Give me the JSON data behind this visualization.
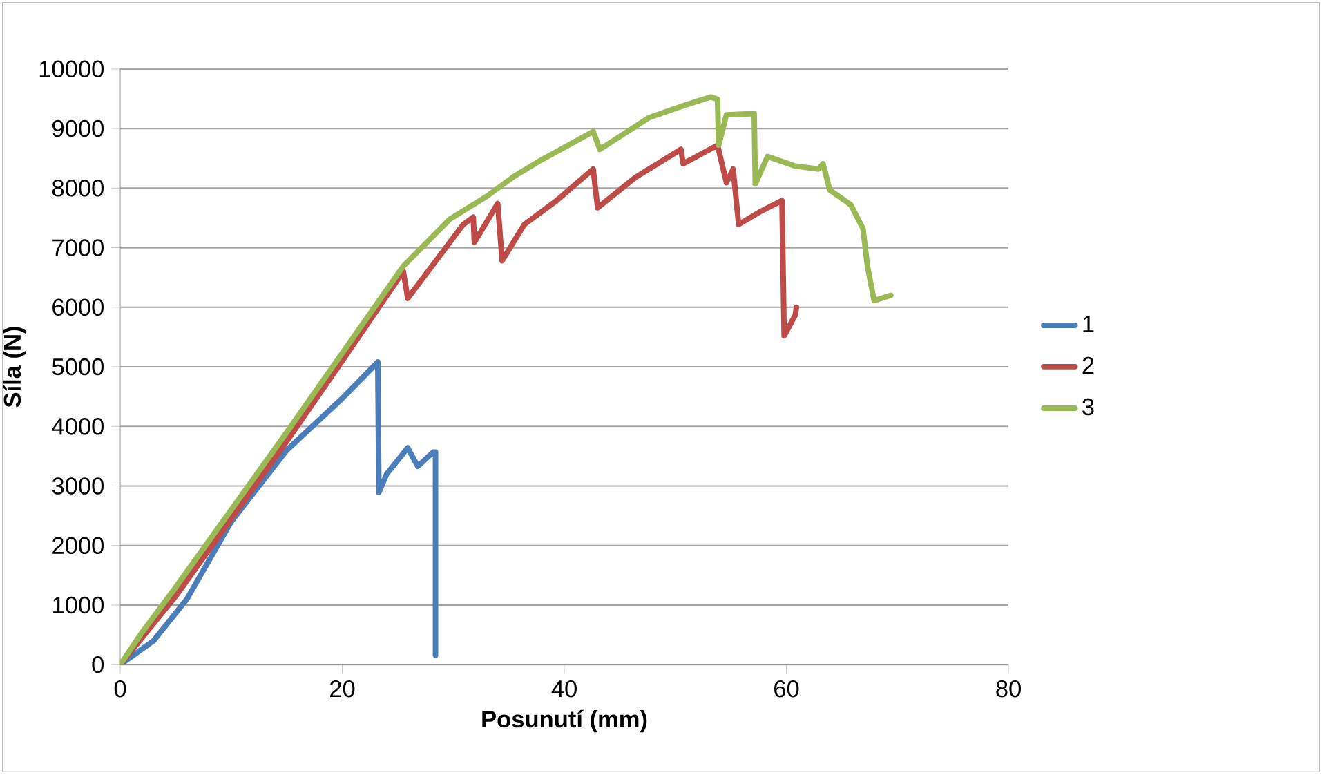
{
  "chart_data": {
    "type": "line",
    "xlabel": "Posunutí (mm)",
    "ylabel": "Síla (N)",
    "xlim": [
      0,
      80
    ],
    "xticks": [
      0,
      20,
      40,
      60,
      80
    ],
    "ylim": [
      0,
      10000
    ],
    "yticks": [
      0,
      1000,
      2000,
      3000,
      4000,
      5000,
      6000,
      7000,
      8000,
      9000,
      10000
    ],
    "grid": "y",
    "legend": "right",
    "marker": "none",
    "line_style": "solid",
    "series": [
      {
        "name": "1",
        "color": "#4a7ebb",
        "x": [
          0,
          3,
          6,
          10,
          15,
          20,
          23.2,
          23.3,
          24,
          25.9,
          26.8,
          28.2,
          28.4,
          28.4
        ],
        "values": [
          0,
          400,
          1100,
          2400,
          3600,
          4470,
          5080,
          2890,
          3200,
          3640,
          3330,
          3570,
          3570,
          160
        ]
      },
      {
        "name": "2",
        "color": "#be4b48",
        "x": [
          0,
          5,
          10,
          15,
          20,
          25.5,
          25.9,
          30.9,
          31.8,
          31.9,
          34.0,
          34.4,
          36.4,
          39.3,
          42.6,
          43.0,
          46.4,
          50.5,
          50.7,
          53.8,
          54.6,
          55.2,
          55.7,
          57.6,
          59.6,
          59.8,
          60.8,
          60.9
        ],
        "values": [
          0,
          1150,
          2450,
          3750,
          5100,
          6600,
          6150,
          7390,
          7510,
          7090,
          7740,
          6780,
          7390,
          7790,
          8320,
          7670,
          8180,
          8650,
          8410,
          8720,
          8090,
          8320,
          7390,
          7600,
          7790,
          5520,
          5870,
          6000
        ]
      },
      {
        "name": "3",
        "color": "#98b954",
        "x": [
          0,
          2,
          5,
          10,
          15,
          20,
          25.5,
          29.7,
          33.0,
          35.5,
          38.0,
          42.6,
          43.2,
          47.6,
          50.5,
          53.2,
          53.8,
          53.9,
          54.6,
          57.1,
          57.2,
          58.3,
          60.8,
          62.9,
          63.3,
          63.9,
          65.8,
          66.9,
          67.3,
          67.9,
          69.4
        ],
        "values": [
          0,
          550,
          1300,
          2600,
          3900,
          5230,
          6690,
          7480,
          7860,
          8200,
          8480,
          8950,
          8650,
          9180,
          9370,
          9530,
          9490,
          8720,
          9230,
          9250,
          8070,
          8530,
          8370,
          8320,
          8410,
          7970,
          7720,
          7320,
          6690,
          6110,
          6200
        ]
      }
    ]
  }
}
